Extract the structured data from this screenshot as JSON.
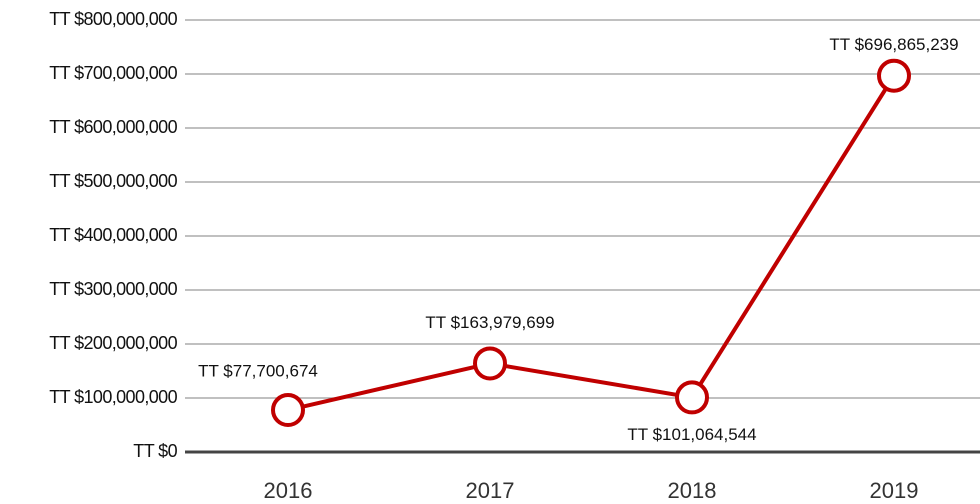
{
  "chart_data": {
    "type": "line",
    "categories": [
      "2016",
      "2017",
      "2018",
      "2019"
    ],
    "series": [
      {
        "color": "#c00000",
        "values": [
          77700674,
          163979699,
          101064544,
          696865239
        ],
        "value_labels": [
          "TT $77,700,674",
          "TT $163,979,699",
          "TT $101,064,544",
          "TT $696,865,239"
        ]
      }
    ],
    "ylim": [
      0,
      800000000
    ],
    "yticks": [
      {
        "value": 0,
        "label": "TT $0"
      },
      {
        "value": 100000000,
        "label": "TT $100,000,000"
      },
      {
        "value": 200000000,
        "label": "TT $200,000,000"
      },
      {
        "value": 300000000,
        "label": "TT $300,000,000"
      },
      {
        "value": 400000000,
        "label": "TT $400,000,000"
      },
      {
        "value": 500000000,
        "label": "TT $500,000,000"
      },
      {
        "value": 600000000,
        "label": "TT $600,000,000"
      },
      {
        "value": 700000000,
        "label": "TT $700,000,000"
      },
      {
        "value": 800000000,
        "label": "TT $800,000,000"
      }
    ],
    "grid": true
  }
}
